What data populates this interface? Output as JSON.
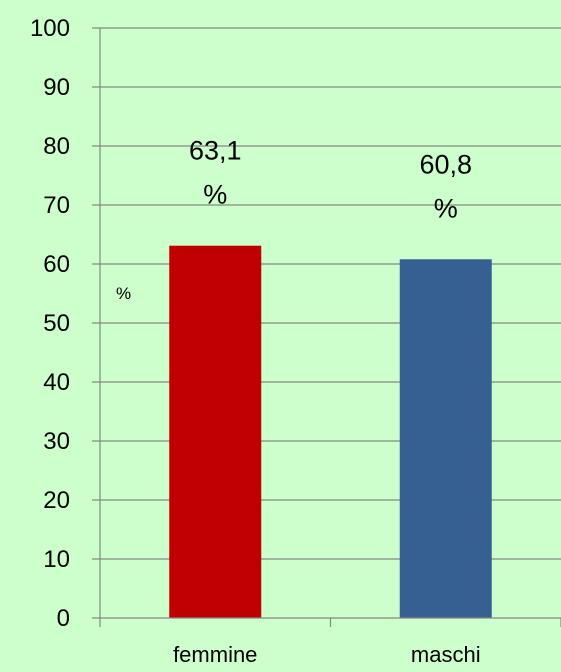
{
  "chart_data": {
    "type": "bar",
    "title": "",
    "xlabel": "",
    "ylabel": "%",
    "categories": [
      "femmine",
      "maschi"
    ],
    "values": [
      63.1,
      60.8
    ],
    "data_labels": [
      {
        "number": "63,1",
        "unit": "%"
      },
      {
        "number": "60,8",
        "unit": "%"
      }
    ],
    "ylim": [
      0,
      100
    ],
    "yticks": [
      0,
      10,
      20,
      30,
      40,
      50,
      60,
      70,
      80,
      90,
      100
    ],
    "grid": true,
    "legend": "none",
    "colors": [
      "#c00000",
      "#376092"
    ],
    "background": "#ccffcc"
  }
}
